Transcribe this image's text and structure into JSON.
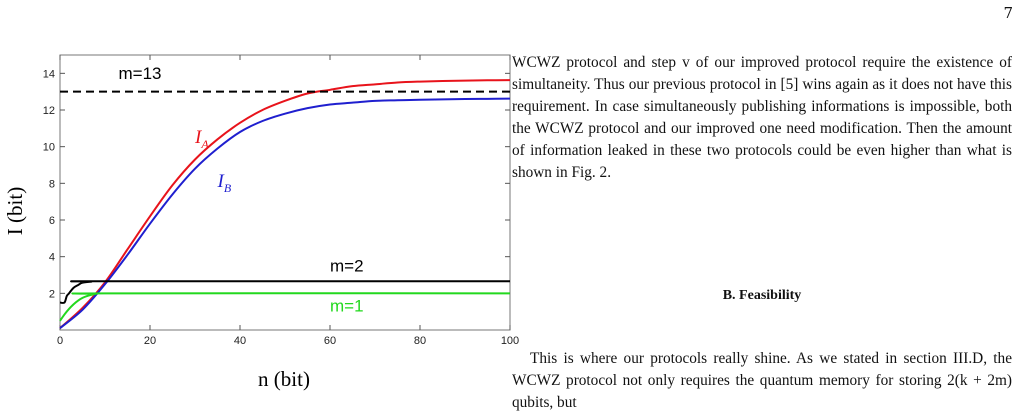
{
  "page": {
    "number": "7"
  },
  "paragraph1": "WCWZ protocol and step v of our improved protocol require the existence of simultaneity. Thus our previous protocol in [5] wins again as it does not have this requirement. In case simultaneously publishing informations is impossible, both the WCWZ protocol and our improved one need modification. Then the amount of information leaked in these two protocols could be even higher than what is shown in Fig. 2.",
  "section": {
    "heading": "B.   Feasibility"
  },
  "paragraph2": "This is where our protocols really shine. As we stated in section III.D, the WCWZ protocol not only requires the quantum memory for storing 2(k + 2m) qubits, but",
  "chart_data": {
    "type": "line",
    "xlabel": "n (bit)",
    "ylabel": "I (bit)",
    "xlim": [
      0,
      100
    ],
    "ylim": [
      0,
      15
    ],
    "xticks": [
      0,
      20,
      40,
      60,
      80,
      100
    ],
    "yticks": [
      2,
      4,
      6,
      8,
      10,
      12,
      14
    ],
    "series": [
      {
        "name": "I_A",
        "label_main": "I",
        "label_sub": "A",
        "color": "#e8131b",
        "style": "solid",
        "x": [
          0,
          5,
          10,
          15,
          20,
          25,
          30,
          35,
          40,
          45,
          50,
          55,
          60,
          65,
          70,
          75,
          80,
          85,
          90,
          95,
          100
        ],
        "y": [
          0.1,
          1.2,
          2.6,
          4.4,
          6.2,
          7.9,
          9.3,
          10.4,
          11.3,
          12.0,
          12.5,
          12.9,
          13.1,
          13.3,
          13.4,
          13.5,
          13.55,
          13.58,
          13.6,
          13.62,
          13.63
        ]
      },
      {
        "name": "I_B",
        "label_main": "I",
        "label_sub": "B",
        "color": "#1f1fcf",
        "style": "solid",
        "x": [
          0,
          5,
          10,
          15,
          20,
          25,
          30,
          35,
          40,
          45,
          50,
          55,
          60,
          65,
          70,
          75,
          80,
          85,
          90,
          95,
          100
        ],
        "y": [
          0.1,
          1.1,
          2.5,
          4.1,
          5.8,
          7.4,
          8.8,
          9.9,
          10.8,
          11.4,
          11.8,
          12.1,
          12.3,
          12.4,
          12.5,
          12.53,
          12.56,
          12.58,
          12.6,
          12.61,
          12.62
        ]
      },
      {
        "name": "m=1",
        "color": "#22d81e",
        "style": "solid",
        "x": [
          0,
          1,
          2,
          3,
          4,
          5,
          6,
          7,
          8,
          10,
          100
        ],
        "y": [
          0.5,
          0.85,
          1.15,
          1.4,
          1.6,
          1.75,
          1.85,
          1.92,
          1.97,
          2.0,
          2.0
        ]
      },
      {
        "name": "m=2",
        "color": "#000000",
        "style": "solid",
        "x": [
          0,
          1,
          1.5,
          2,
          3,
          4,
          5,
          7,
          10,
          100
        ],
        "y": [
          1.5,
          1.5,
          1.85,
          2.0,
          2.3,
          2.45,
          2.58,
          2.64,
          2.66,
          2.66
        ]
      },
      {
        "name": "m=13",
        "color": "#000000",
        "style": "dashed",
        "x": [
          0,
          100
        ],
        "y": [
          13.0,
          13.0
        ]
      }
    ],
    "annotations": [
      {
        "text": "m=13",
        "x": 13,
        "y": 13.7,
        "color": "#000000"
      },
      {
        "text": "m=2",
        "x": 60,
        "y": 3.2,
        "color": "#000000"
      },
      {
        "text": "m=1",
        "x": 60,
        "y": 1.0,
        "color": "#22d81e"
      }
    ]
  }
}
